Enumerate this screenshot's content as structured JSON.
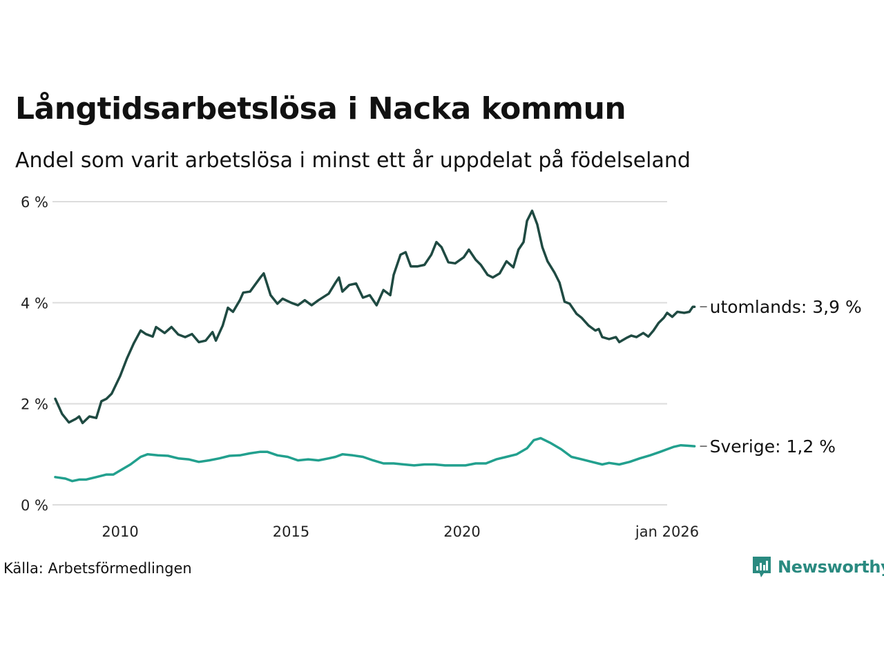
{
  "title": "Långtidsarbetslösa i Nacka kommun",
  "subtitle": "Andel som varit arbetslösa i minst ett år uppdelat på födelseland",
  "source": "Källa: Arbetsförmedlingen",
  "brand": "Newsworthy",
  "chart_data": {
    "type": "line",
    "ylim": [
      0,
      6
    ],
    "xlim": [
      2008.1,
      2026.0
    ],
    "y_ticks": [
      0,
      2,
      4,
      6
    ],
    "y_tick_labels": [
      "0 %",
      "2 %",
      "4 %",
      "6 %"
    ],
    "x_ticks": [
      2010,
      2015,
      2020,
      2026.0
    ],
    "x_tick_labels": [
      "2010",
      "2015",
      "2020",
      "jan 2026"
    ],
    "grid": true,
    "series": [
      {
        "name": "utomlands",
        "end_label": "utomlands: 3,9 %",
        "color": "#1f4a42",
        "points": [
          [
            2008.1,
            2.1
          ],
          [
            2008.3,
            1.8
          ],
          [
            2008.5,
            1.63
          ],
          [
            2008.7,
            1.7
          ],
          [
            2008.8,
            1.75
          ],
          [
            2008.9,
            1.62
          ],
          [
            2009.1,
            1.75
          ],
          [
            2009.3,
            1.72
          ],
          [
            2009.45,
            2.05
          ],
          [
            2009.6,
            2.1
          ],
          [
            2009.75,
            2.2
          ],
          [
            2010.0,
            2.55
          ],
          [
            2010.2,
            2.9
          ],
          [
            2010.4,
            3.2
          ],
          [
            2010.6,
            3.45
          ],
          [
            2010.75,
            3.38
          ],
          [
            2010.95,
            3.33
          ],
          [
            2011.05,
            3.52
          ],
          [
            2011.3,
            3.4
          ],
          [
            2011.5,
            3.52
          ],
          [
            2011.7,
            3.37
          ],
          [
            2011.9,
            3.32
          ],
          [
            2012.1,
            3.38
          ],
          [
            2012.3,
            3.22
          ],
          [
            2012.5,
            3.25
          ],
          [
            2012.7,
            3.42
          ],
          [
            2012.8,
            3.25
          ],
          [
            2013.0,
            3.55
          ],
          [
            2013.15,
            3.9
          ],
          [
            2013.3,
            3.82
          ],
          [
            2013.5,
            4.05
          ],
          [
            2013.6,
            4.2
          ],
          [
            2013.8,
            4.22
          ],
          [
            2014.1,
            4.5
          ],
          [
            2014.2,
            4.58
          ],
          [
            2014.4,
            4.15
          ],
          [
            2014.6,
            3.98
          ],
          [
            2014.75,
            4.08
          ],
          [
            2015.0,
            4.0
          ],
          [
            2015.2,
            3.95
          ],
          [
            2015.4,
            4.05
          ],
          [
            2015.6,
            3.95
          ],
          [
            2015.8,
            4.05
          ],
          [
            2016.1,
            4.18
          ],
          [
            2016.3,
            4.4
          ],
          [
            2016.4,
            4.5
          ],
          [
            2016.5,
            4.22
          ],
          [
            2016.7,
            4.35
          ],
          [
            2016.9,
            4.38
          ],
          [
            2017.1,
            4.1
          ],
          [
            2017.3,
            4.15
          ],
          [
            2017.5,
            3.95
          ],
          [
            2017.7,
            4.25
          ],
          [
            2017.9,
            4.15
          ],
          [
            2018.0,
            4.55
          ],
          [
            2018.2,
            4.95
          ],
          [
            2018.35,
            5.0
          ],
          [
            2018.5,
            4.72
          ],
          [
            2018.7,
            4.72
          ],
          [
            2018.9,
            4.75
          ],
          [
            2019.1,
            4.95
          ],
          [
            2019.25,
            5.2
          ],
          [
            2019.4,
            5.1
          ],
          [
            2019.6,
            4.8
          ],
          [
            2019.8,
            4.78
          ],
          [
            2019.95,
            4.85
          ],
          [
            2020.05,
            4.9
          ],
          [
            2020.2,
            5.05
          ],
          [
            2020.4,
            4.85
          ],
          [
            2020.55,
            4.75
          ],
          [
            2020.75,
            4.55
          ],
          [
            2020.9,
            4.5
          ],
          [
            2021.1,
            4.58
          ],
          [
            2021.3,
            4.82
          ],
          [
            2021.5,
            4.7
          ],
          [
            2021.65,
            5.05
          ],
          [
            2021.8,
            5.2
          ],
          [
            2021.9,
            5.62
          ],
          [
            2022.05,
            5.82
          ],
          [
            2022.2,
            5.55
          ],
          [
            2022.35,
            5.1
          ],
          [
            2022.5,
            4.82
          ],
          [
            2022.7,
            4.6
          ],
          [
            2022.85,
            4.4
          ],
          [
            2023.0,
            4.02
          ],
          [
            2023.15,
            3.98
          ],
          [
            2023.35,
            3.78
          ],
          [
            2023.5,
            3.7
          ],
          [
            2023.7,
            3.55
          ],
          [
            2023.9,
            3.45
          ],
          [
            2024.0,
            3.48
          ],
          [
            2024.1,
            3.32
          ],
          [
            2024.3,
            3.28
          ],
          [
            2024.5,
            3.32
          ],
          [
            2024.6,
            3.22
          ],
          [
            2024.8,
            3.3
          ],
          [
            2024.95,
            3.35
          ],
          [
            2025.1,
            3.32
          ],
          [
            2025.3,
            3.4
          ],
          [
            2025.45,
            3.33
          ],
          [
            2025.6,
            3.45
          ],
          [
            2025.75,
            3.6
          ],
          [
            2025.9,
            3.7
          ],
          [
            2026.0,
            3.8
          ],
          [
            2026.15,
            3.72
          ],
          [
            2026.3,
            3.82
          ],
          [
            2026.5,
            3.8
          ],
          [
            2026.65,
            3.82
          ],
          [
            2026.75,
            3.92
          ],
          [
            2026.8,
            3.92
          ]
        ]
      },
      {
        "name": "Sverige",
        "end_label": "Sverige: 1,2 %",
        "color": "#22a08e",
        "points": [
          [
            2008.1,
            0.55
          ],
          [
            2008.4,
            0.52
          ],
          [
            2008.6,
            0.47
          ],
          [
            2008.8,
            0.5
          ],
          [
            2009.0,
            0.5
          ],
          [
            2009.3,
            0.55
          ],
          [
            2009.6,
            0.6
          ],
          [
            2009.8,
            0.6
          ],
          [
            2010.0,
            0.68
          ],
          [
            2010.3,
            0.8
          ],
          [
            2010.6,
            0.95
          ],
          [
            2010.8,
            1.0
          ],
          [
            2011.1,
            0.98
          ],
          [
            2011.4,
            0.97
          ],
          [
            2011.7,
            0.92
          ],
          [
            2012.0,
            0.9
          ],
          [
            2012.3,
            0.85
          ],
          [
            2012.6,
            0.88
          ],
          [
            2012.9,
            0.92
          ],
          [
            2013.2,
            0.97
          ],
          [
            2013.5,
            0.98
          ],
          [
            2013.8,
            1.02
          ],
          [
            2014.1,
            1.05
          ],
          [
            2014.3,
            1.05
          ],
          [
            2014.6,
            0.98
          ],
          [
            2014.9,
            0.95
          ],
          [
            2015.2,
            0.88
          ],
          [
            2015.5,
            0.9
          ],
          [
            2015.8,
            0.88
          ],
          [
            2016.1,
            0.92
          ],
          [
            2016.3,
            0.95
          ],
          [
            2016.5,
            1.0
          ],
          [
            2016.8,
            0.98
          ],
          [
            2017.1,
            0.95
          ],
          [
            2017.4,
            0.88
          ],
          [
            2017.7,
            0.82
          ],
          [
            2018.0,
            0.82
          ],
          [
            2018.3,
            0.8
          ],
          [
            2018.6,
            0.78
          ],
          [
            2018.9,
            0.8
          ],
          [
            2019.2,
            0.8
          ],
          [
            2019.5,
            0.78
          ],
          [
            2019.8,
            0.78
          ],
          [
            2020.1,
            0.78
          ],
          [
            2020.4,
            0.82
          ],
          [
            2020.7,
            0.82
          ],
          [
            2021.0,
            0.9
          ],
          [
            2021.3,
            0.95
          ],
          [
            2021.6,
            1.0
          ],
          [
            2021.9,
            1.12
          ],
          [
            2022.1,
            1.28
          ],
          [
            2022.3,
            1.32
          ],
          [
            2022.6,
            1.22
          ],
          [
            2022.9,
            1.1
          ],
          [
            2023.2,
            0.95
          ],
          [
            2023.5,
            0.9
          ],
          [
            2023.8,
            0.85
          ],
          [
            2024.1,
            0.8
          ],
          [
            2024.3,
            0.83
          ],
          [
            2024.6,
            0.8
          ],
          [
            2024.9,
            0.85
          ],
          [
            2025.2,
            0.92
          ],
          [
            2025.5,
            0.98
          ],
          [
            2025.8,
            1.05
          ],
          [
            2026.0,
            1.1
          ],
          [
            2026.2,
            1.15
          ],
          [
            2026.4,
            1.18
          ],
          [
            2026.6,
            1.17
          ],
          [
            2026.8,
            1.16
          ]
        ]
      }
    ]
  }
}
